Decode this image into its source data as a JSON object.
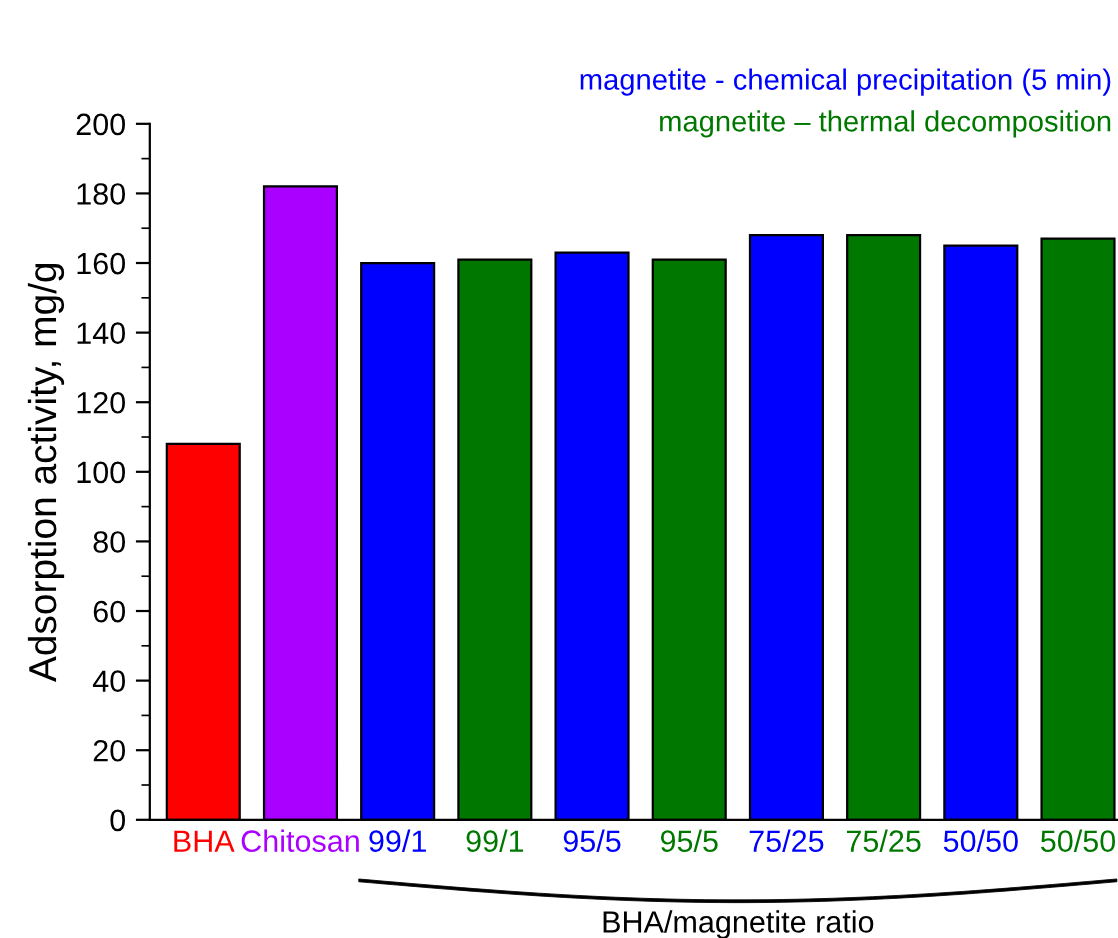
{
  "chart_data": {
    "type": "bar",
    "ylabel": "Adsorption activity, mg/g",
    "xlabel": "BHA/magnetite ratio",
    "categories": [
      "BHA",
      "Chitosan",
      "99/1",
      "99/1",
      "95/5",
      "95/5",
      "75/25",
      "75/25",
      "50/50",
      "50/50"
    ],
    "series": [
      {
        "color": "#ff0000",
        "values": [
          108,
          null,
          null,
          null,
          null,
          null,
          null,
          null,
          null,
          null
        ]
      },
      {
        "color": "#aa00ff",
        "values": [
          null,
          182,
          null,
          null,
          null,
          null,
          null,
          null,
          null,
          null
        ]
      },
      {
        "name": "magnetite - chemical precipitation (5 min)",
        "color": "#0000ff",
        "values": [
          null,
          null,
          160,
          null,
          163,
          null,
          168,
          null,
          165,
          null
        ]
      },
      {
        "name": "magnetite – thermal decomposition",
        "color": "#007800",
        "values": [
          null,
          null,
          null,
          161,
          null,
          161,
          null,
          168,
          null,
          167
        ]
      }
    ],
    "ylim": [
      0,
      200
    ],
    "yticks": [
      0,
      20,
      40,
      60,
      80,
      100,
      120,
      140,
      160,
      180,
      200
    ],
    "grid": false,
    "legend": "top right"
  }
}
